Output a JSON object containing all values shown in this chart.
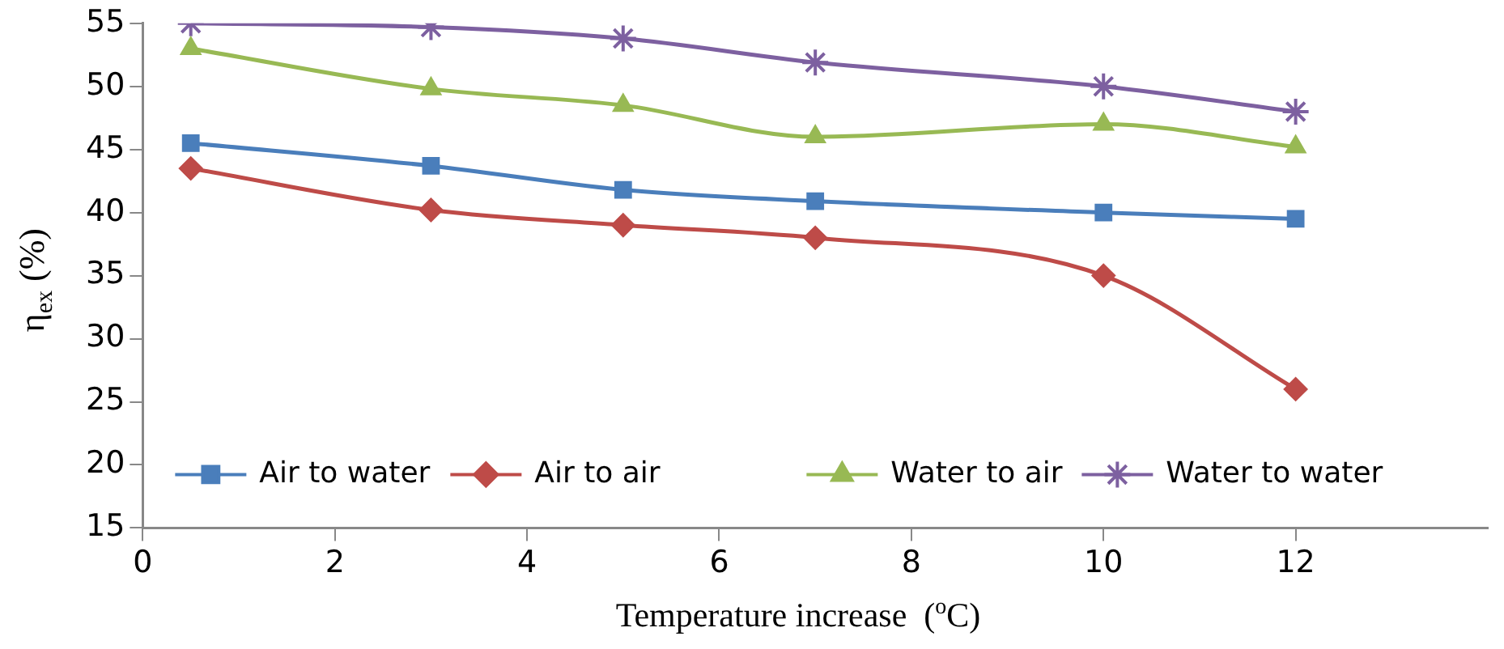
{
  "chart_data": {
    "type": "line",
    "xlabel": "Temperature increase  ($^{o}$C)",
    "ylabel": "η$_{ex}$ (%)",
    "x": [
      0.5,
      3,
      5,
      7,
      10,
      12
    ],
    "xlim": [
      0,
      14
    ],
    "xticks": [
      0,
      2,
      4,
      6,
      8,
      10,
      12
    ],
    "ylim": [
      15,
      55
    ],
    "yticks": [
      15,
      20,
      25,
      30,
      35,
      40,
      45,
      50,
      55
    ],
    "grid": false,
    "legend": "bottom",
    "line_style": "solid",
    "series": [
      {
        "name": "Air to water",
        "color": "#4a7ebb",
        "marker": "square",
        "values": [
          45.5,
          43.7,
          41.8,
          40.9,
          40,
          39.5
        ]
      },
      {
        "name": "Air to air",
        "color": "#be4b48",
        "marker": "diamond",
        "values": [
          43.5,
          40.2,
          39,
          38,
          35,
          26
        ]
      },
      {
        "name": "Water to air",
        "color": "#98b954",
        "marker": "triangle",
        "values": [
          53,
          49.8,
          48.5,
          46,
          47,
          45.2
        ]
      },
      {
        "name": "Water to water",
        "color": "#7d60a0",
        "marker": "cross",
        "values": [
          55,
          54.7,
          53.8,
          51.9,
          50,
          48
        ]
      }
    ]
  }
}
